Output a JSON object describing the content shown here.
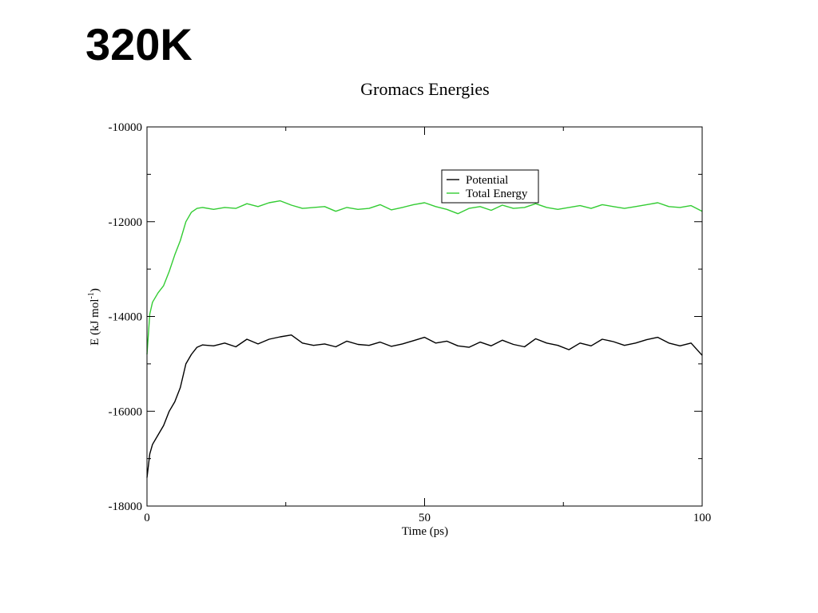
{
  "slide": {
    "title": "320K"
  },
  "chart_data": {
    "type": "line",
    "title": "Gromacs Energies",
    "xlabel": "Time (ps)",
    "ylabel": "E (kJ mol",
    "ylabel_sup": "-1",
    "ylabel_close": ")",
    "xlim": [
      0,
      100
    ],
    "ylim": [
      -18000,
      -10000
    ],
    "xticks": [
      0,
      50,
      100
    ],
    "xtick_labels": [
      "0",
      "50",
      "100"
    ],
    "xminor": [
      25,
      75
    ],
    "yticks": [
      -18000,
      -16000,
      -14000,
      -12000,
      -10000
    ],
    "ytick_labels": [
      "-18000",
      "-16000",
      "-14000",
      "-12000",
      "-10000"
    ],
    "yminor": [
      -17000,
      -15000,
      -13000,
      -11000
    ],
    "grid": false,
    "legend_position": "top-right",
    "series": [
      {
        "name": "Potential",
        "color": "#000000",
        "x": [
          0,
          0.5,
          1,
          2,
          3,
          4,
          5,
          6,
          7,
          8,
          9,
          10,
          12,
          14,
          16,
          18,
          20,
          22,
          24,
          26,
          28,
          30,
          32,
          34,
          36,
          38,
          40,
          42,
          44,
          46,
          48,
          50,
          52,
          54,
          56,
          58,
          60,
          62,
          64,
          66,
          68,
          70,
          72,
          74,
          76,
          78,
          80,
          82,
          84,
          86,
          88,
          90,
          92,
          94,
          96,
          98,
          100
        ],
        "y": [
          -17400,
          -16900,
          -16700,
          -16500,
          -16300,
          -16000,
          -15800,
          -15500,
          -15000,
          -14800,
          -14650,
          -14600,
          -14620,
          -14560,
          -14640,
          -14480,
          -14580,
          -14480,
          -14430,
          -14390,
          -14560,
          -14610,
          -14580,
          -14640,
          -14520,
          -14590,
          -14610,
          -14540,
          -14630,
          -14580,
          -14510,
          -14440,
          -14560,
          -14520,
          -14620,
          -14650,
          -14540,
          -14620,
          -14500,
          -14590,
          -14640,
          -14470,
          -14560,
          -14610,
          -14700,
          -14560,
          -14620,
          -14480,
          -14530,
          -14610,
          -14560,
          -14490,
          -14440,
          -14560,
          -14620,
          -14560,
          -14820
        ]
      },
      {
        "name": "Total Energy",
        "color": "#33cc33",
        "x": [
          0,
          0.5,
          1,
          2,
          3,
          4,
          5,
          6,
          7,
          8,
          9,
          10,
          12,
          14,
          16,
          18,
          20,
          22,
          24,
          26,
          28,
          30,
          32,
          34,
          36,
          38,
          40,
          42,
          44,
          46,
          48,
          50,
          52,
          54,
          56,
          58,
          60,
          62,
          64,
          66,
          68,
          70,
          72,
          74,
          76,
          78,
          80,
          82,
          84,
          86,
          88,
          90,
          92,
          94,
          96,
          98,
          100
        ],
        "y": [
          -14800,
          -13950,
          -13700,
          -13500,
          -13350,
          -13050,
          -12700,
          -12400,
          -12000,
          -11800,
          -11720,
          -11700,
          -11740,
          -11700,
          -11720,
          -11620,
          -11680,
          -11600,
          -11560,
          -11650,
          -11720,
          -11700,
          -11680,
          -11780,
          -11700,
          -11740,
          -11720,
          -11640,
          -11750,
          -11700,
          -11640,
          -11600,
          -11680,
          -11740,
          -11830,
          -11720,
          -11680,
          -11760,
          -11650,
          -11720,
          -11700,
          -11620,
          -11700,
          -11740,
          -11700,
          -11660,
          -11720,
          -11640,
          -11680,
          -11720,
          -11680,
          -11640,
          -11600,
          -11680,
          -11700,
          -11660,
          -11780
        ]
      }
    ]
  }
}
